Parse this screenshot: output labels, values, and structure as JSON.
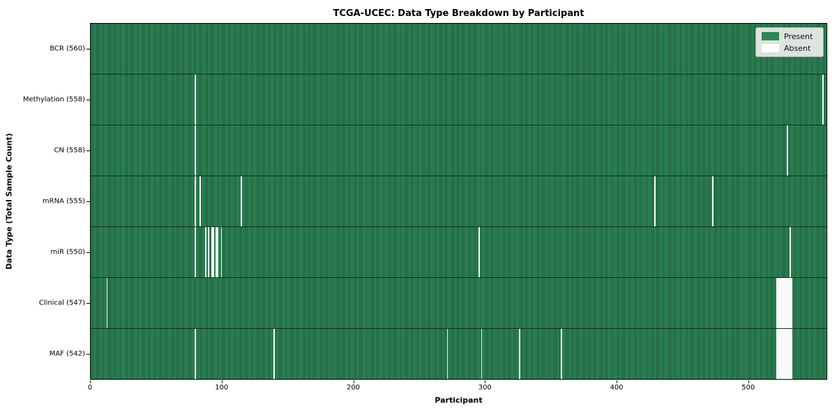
{
  "figure": {
    "title": "TCGA-UCEC: Data Type Breakdown by Participant",
    "xlabel": "Participant",
    "ylabel": "Data Type (Total Sample Count)"
  },
  "colors": {
    "present": "#2e8757",
    "present_stripe_dark": "#1d5a38",
    "absent": "#ffffff",
    "legend_present_swatch": "#2e8757",
    "legend_absent_swatch": "#ffffff"
  },
  "chart_data": {
    "type": "heatmap",
    "title": "TCGA-UCEC: Data Type Breakdown by Participant",
    "xlabel": "Participant",
    "ylabel": "Data Type (Total Sample Count)",
    "x_range": [
      0,
      560
    ],
    "x_ticks": [
      0,
      100,
      200,
      300,
      400,
      500
    ],
    "n_participants": 560,
    "grid": false,
    "legend_position": "upper right",
    "legend": [
      {
        "label": "Present",
        "color_key": "present"
      },
      {
        "label": "Absent",
        "color_key": "absent"
      }
    ],
    "rows": [
      {
        "label": "BCR (560)",
        "data_type": "BCR",
        "present_count": 560,
        "absent_participants": []
      },
      {
        "label": "Methylation (558)",
        "data_type": "Methylation",
        "present_count": 558,
        "absent_participants": [
          79,
          557
        ]
      },
      {
        "label": "CN (558)",
        "data_type": "CN",
        "present_count": 558,
        "absent_participants": [
          79,
          530
        ]
      },
      {
        "label": "mRNA (555)",
        "data_type": "mRNA",
        "present_count": 555,
        "absent_participants": [
          79,
          83,
          114,
          429,
          473
        ]
      },
      {
        "label": "miR (550)",
        "data_type": "miR",
        "present_count": 550,
        "absent_participants": [
          79,
          87,
          89,
          92,
          93,
          95,
          96,
          99,
          295,
          532
        ]
      },
      {
        "label": "Clinical (547)",
        "data_type": "Clinical",
        "present_count": 547,
        "absent_participants": [
          12,
          522,
          523,
          524,
          525,
          526,
          527,
          528,
          529,
          530,
          531,
          532,
          533
        ]
      },
      {
        "label": "MAF (542)",
        "data_type": "MAF",
        "present_count": 542,
        "absent_participants": [
          79,
          139,
          271,
          297,
          326,
          358,
          522,
          523,
          524,
          525,
          526,
          527,
          528,
          529,
          530,
          531,
          532,
          533
        ]
      }
    ]
  }
}
